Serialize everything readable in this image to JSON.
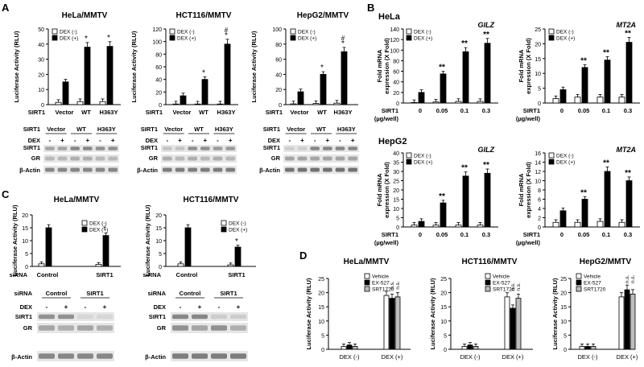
{
  "panel_labels": {
    "A": "A",
    "B": "B",
    "C": "C",
    "D": "D"
  },
  "legend": {
    "dex_minus": "DEX (-)",
    "dex_plus": "DEX (+)",
    "vehicle": "Vehicle",
    "ex527": "EX-527",
    "srt1720": "SRT1720"
  },
  "labels": {
    "luc_axis": "Luciferase Activity (RLU)",
    "fold_axis_1": "Fold mRNA",
    "fold_axis_2": "expression (X Fold)",
    "sirt1": "SIRT1",
    "sirt1_dose_1": "SIRT1",
    "sirt1_dose_2": "(µg/well)",
    "sirna": "siRNA",
    "dex": "DEX",
    "gr": "GR",
    "bactin": "β-Actin",
    "star": "*",
    "dstar": "**",
    "hash": "#",
    "ns": "n.s.",
    "minus": "-",
    "plus": "+",
    "dex_minus": "DEX (-)",
    "dex_plus": "DEX (+)"
  },
  "blot_groups": {
    "sirt1_groups": [
      "Vector",
      "WT",
      "H363Y"
    ],
    "sirna_groups": [
      "Control",
      "SIRT1"
    ]
  },
  "chart_data": [
    {
      "id": "A1",
      "type": "bar",
      "title": "HeLa/MMTV",
      "ylabel": "Luciferase Activity (RLU)",
      "xlabel": "SIRT1",
      "categories": [
        "Vector",
        "WT",
        "H363Y"
      ],
      "ylim": [
        0,
        50
      ],
      "yticks": [
        0,
        10,
        20,
        30,
        40,
        50
      ],
      "series": [
        {
          "name": "DEX (-)",
          "values": [
            1.5,
            2,
            2
          ]
        },
        {
          "name": "DEX (+)",
          "values": [
            15,
            38,
            38.5
          ]
        }
      ],
      "annotations": [
        {
          "category": "WT",
          "text": "*"
        },
        {
          "category": "H363Y",
          "text": "*"
        }
      ]
    },
    {
      "id": "A2",
      "type": "bar",
      "title": "HCT116/MMTV",
      "ylabel": "Luciferase Activity (RLU)",
      "xlabel": "SIRT1",
      "categories": [
        "Vector",
        "WT",
        "H363Y"
      ],
      "ylim": [
        0,
        120
      ],
      "yticks": [
        0,
        20,
        40,
        60,
        80,
        100,
        120
      ],
      "series": [
        {
          "name": "DEX (-)",
          "values": [
            1,
            1,
            1
          ]
        },
        {
          "name": "DEX (+)",
          "values": [
            14,
            40,
            96
          ]
        }
      ],
      "annotations": [
        {
          "category": "WT",
          "text": "*"
        },
        {
          "category": "H363Y",
          "text": "*"
        },
        {
          "category": "H363Y",
          "text": "#"
        }
      ]
    },
    {
      "id": "A3",
      "type": "bar",
      "title": "HepG2/MMTV",
      "ylabel": "Luciferase Activity (RLU)",
      "xlabel": "SIRT1",
      "categories": [
        "Vector",
        "WT",
        "H363Y"
      ],
      "ylim": [
        0,
        100
      ],
      "yticks": [
        0,
        20,
        40,
        60,
        80,
        100
      ],
      "series": [
        {
          "name": "DEX (-)",
          "values": [
            1,
            1.5,
            2
          ]
        },
        {
          "name": "DEX (+)",
          "values": [
            17,
            40,
            70
          ]
        }
      ],
      "annotations": [
        {
          "category": "WT",
          "text": "*"
        },
        {
          "category": "H363Y",
          "text": "*"
        },
        {
          "category": "H363Y",
          "text": "#"
        }
      ]
    },
    {
      "id": "B1",
      "type": "bar",
      "title": "GILZ",
      "cell_line": "HeLa",
      "ylabel": "Fold mRNA expression (X Fold)",
      "xlabel": "SIRT1 (µg/well)",
      "categories": [
        "0",
        "0.05",
        "0.1",
        "0.3"
      ],
      "ylim": [
        0,
        140
      ],
      "yticks": [
        0,
        20,
        40,
        60,
        80,
        100,
        120,
        140
      ],
      "series": [
        {
          "name": "DEX (-)",
          "values": [
            1,
            2,
            3,
            3
          ]
        },
        {
          "name": "DEX (+)",
          "values": [
            20,
            55,
            97,
            113
          ]
        }
      ],
      "annotations": [
        {
          "category": "0.05",
          "text": "**"
        },
        {
          "category": "0.1",
          "text": "**"
        },
        {
          "category": "0.3",
          "text": "**"
        }
      ]
    },
    {
      "id": "B2",
      "type": "bar",
      "title": "MT2A",
      "cell_line": "HeLa",
      "ylabel": "Fold mRNA expression (X Fold)",
      "xlabel": "SIRT1 (µg/well)",
      "categories": [
        "0",
        "0.05",
        "0.1",
        "0.3"
      ],
      "ylim": [
        0,
        25
      ],
      "yticks": [
        0,
        5,
        10,
        15,
        20,
        25
      ],
      "series": [
        {
          "name": "DEX (-)",
          "values": [
            1.5,
            2,
            2,
            2
          ]
        },
        {
          "name": "DEX (+)",
          "values": [
            4.5,
            12,
            14.5,
            20.5
          ]
        }
      ],
      "annotations": [
        {
          "category": "0.05",
          "text": "**"
        },
        {
          "category": "0.1",
          "text": "**"
        },
        {
          "category": "0.3",
          "text": "**"
        }
      ]
    },
    {
      "id": "B3",
      "type": "bar",
      "title": "GILZ",
      "cell_line": "HepG2",
      "ylabel": "Fold mRNA expression (X Fold)",
      "xlabel": "SIRT1 (µg/well)",
      "categories": [
        "0",
        "0.05",
        "0.1",
        "0.3"
      ],
      "ylim": [
        0,
        40
      ],
      "yticks": [
        0,
        5,
        10,
        15,
        20,
        25,
        30,
        35,
        40
      ],
      "series": [
        {
          "name": "DEX (-)",
          "values": [
            1,
            1,
            1,
            1
          ]
        },
        {
          "name": "DEX (+)",
          "values": [
            3,
            13,
            27.5,
            29
          ]
        }
      ],
      "annotations": [
        {
          "category": "0.05",
          "text": "**"
        },
        {
          "category": "0.1",
          "text": "**"
        },
        {
          "category": "0.3",
          "text": "**"
        }
      ]
    },
    {
      "id": "B4",
      "type": "bar",
      "title": "MT2A",
      "cell_line": "HepG2",
      "ylabel": "Fold mRNA expression (X Fold)",
      "xlabel": "SIRT1 (µg/well)",
      "categories": [
        "0",
        "0.05",
        "0.1",
        "0.3"
      ],
      "ylim": [
        0,
        16
      ],
      "yticks": [
        0,
        2,
        4,
        6,
        8,
        10,
        12,
        14,
        16
      ],
      "series": [
        {
          "name": "DEX (-)",
          "values": [
            1,
            1,
            1.2,
            1
          ]
        },
        {
          "name": "DEX (+)",
          "values": [
            3.5,
            6,
            12,
            10
          ]
        }
      ],
      "annotations": [
        {
          "category": "0.05",
          "text": "**"
        },
        {
          "category": "0.1",
          "text": "**"
        },
        {
          "category": "0.3",
          "text": "**"
        }
      ]
    },
    {
      "id": "C1",
      "type": "bar",
      "title": "HeLa/MMTV",
      "ylabel": "Luciferase Activity (RLU)",
      "xlabel": "siRNA",
      "categories": [
        "Control",
        "SIRT1"
      ],
      "ylim": [
        0,
        20
      ],
      "yticks": [
        0,
        5,
        10,
        15,
        20
      ],
      "series": [
        {
          "name": "DEX (-)",
          "values": [
            1,
            0.8
          ]
        },
        {
          "name": "DEX (+)",
          "values": [
            15,
            12
          ]
        }
      ],
      "annotations": [
        {
          "category": "SIRT1",
          "text": "*"
        }
      ]
    },
    {
      "id": "C2",
      "type": "bar",
      "title": "HCT116/MMTV",
      "ylabel": "Luciferase Activity (RLU)",
      "xlabel": "siRNA",
      "categories": [
        "Control",
        "SIRT1"
      ],
      "ylim": [
        0,
        20
      ],
      "yticks": [
        0,
        5,
        10,
        15,
        20
      ],
      "series": [
        {
          "name": "DEX (-)",
          "values": [
            1,
            0.6
          ]
        },
        {
          "name": "DEX (+)",
          "values": [
            15,
            7.5
          ]
        }
      ],
      "annotations": [
        {
          "category": "SIRT1",
          "text": "*"
        }
      ]
    },
    {
      "id": "D1",
      "type": "bar",
      "title": "HeLa/MMTV",
      "ylabel": "Luciferase Activity (RLU)",
      "xlabel": "",
      "categories": [
        "DEX (-)",
        "DEX (+)"
      ],
      "ylim": [
        0,
        25
      ],
      "yticks": [
        0,
        5,
        10,
        15,
        20,
        25
      ],
      "series": [
        {
          "name": "Vehicle",
          "values": [
            1,
            19
          ]
        },
        {
          "name": "EX-527",
          "values": [
            1.5,
            18
          ]
        },
        {
          "name": "SRT1720",
          "values": [
            1,
            18.5
          ]
        }
      ],
      "annotations": [
        {
          "category": "DEX (+)",
          "text": "n.s."
        },
        {
          "category": "DEX (+)",
          "text": "n.s."
        }
      ]
    },
    {
      "id": "D2",
      "type": "bar",
      "title": "HCT116/MMTV",
      "ylabel": "Luciferase Activity (RLU)",
      "xlabel": "",
      "categories": [
        "DEX (-)",
        "DEX (+)"
      ],
      "ylim": [
        0,
        25
      ],
      "yticks": [
        0,
        5,
        10,
        15,
        20,
        25
      ],
      "series": [
        {
          "name": "Vehicle",
          "values": [
            1,
            18.5
          ]
        },
        {
          "name": "EX-527",
          "values": [
            1.5,
            14.5
          ]
        },
        {
          "name": "SRT1720",
          "values": [
            1,
            18
          ]
        }
      ],
      "annotations": [
        {
          "category": "DEX (+)",
          "text": "n.s."
        },
        {
          "category": "DEX (+)",
          "text": "n.s."
        }
      ]
    },
    {
      "id": "D3",
      "type": "bar",
      "title": "HepG2/MMTV",
      "ylabel": "Luciferase Activity (RLU)",
      "xlabel": "",
      "categories": [
        "DEX (-)",
        "DEX (+)"
      ],
      "ylim": [
        0,
        25
      ],
      "yticks": [
        0,
        5,
        10,
        15,
        20,
        25
      ],
      "series": [
        {
          "name": "Vehicle",
          "values": [
            1,
            18.5
          ]
        },
        {
          "name": "EX-527",
          "values": [
            1,
            21
          ]
        },
        {
          "name": "SRT1720",
          "values": [
            1,
            19.5
          ]
        }
      ],
      "annotations": [
        {
          "category": "DEX (+)",
          "text": "n.s."
        },
        {
          "category": "DEX (+)",
          "text": "n.s."
        }
      ]
    }
  ]
}
